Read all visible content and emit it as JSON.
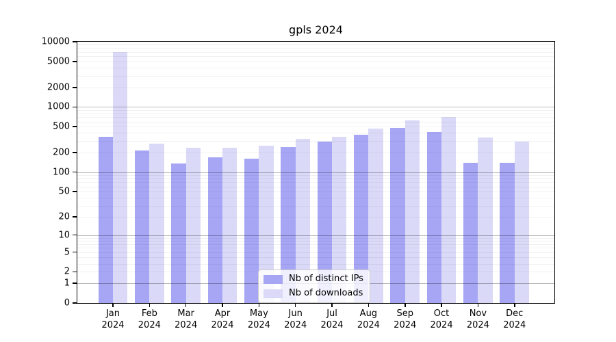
{
  "figure": {
    "title": "gpls 2024"
  },
  "chart_data": {
    "type": "bar",
    "title": "gpls 2024",
    "categories": [
      "Jan 2024",
      "Feb 2024",
      "Mar 2024",
      "Apr 2024",
      "May 2024",
      "Jun 2024",
      "Jul 2024",
      "Aug 2024",
      "Sep 2024",
      "Oct 2024",
      "Nov 2024",
      "Dec 2024"
    ],
    "series": [
      {
        "name": "Nb of distinct IPs",
        "color": "#a6a6f5",
        "values": [
          350,
          213,
          135,
          170,
          160,
          245,
          295,
          380,
          475,
          415,
          138,
          140
        ]
      },
      {
        "name": "Nb of downloads",
        "color": "#dadaf8",
        "values": [
          6900,
          275,
          238,
          238,
          255,
          325,
          350,
          470,
          620,
          710,
          340,
          298
        ]
      }
    ],
    "xlabel": "",
    "ylabel": "",
    "yticks": [
      0,
      1,
      2,
      5,
      10,
      20,
      50,
      100,
      200,
      500,
      1000,
      2000,
      5000,
      10000
    ],
    "ylim": [
      0,
      10000
    ],
    "yscale": "log1p",
    "grid": true,
    "legend_position": "lower center"
  }
}
